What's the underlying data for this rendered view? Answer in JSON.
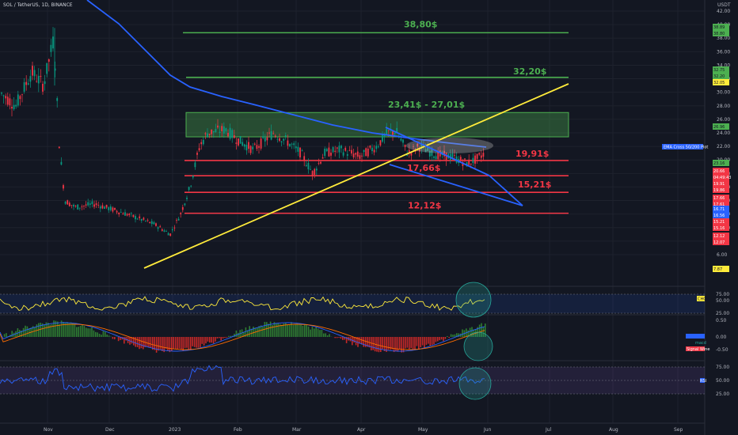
{
  "header": {
    "symbol": "SOL / TetherUS, 1D, BINANCE"
  },
  "axis": {
    "currency": "USDT",
    "price_ticks": [
      "42.00",
      "40.00",
      "38.00",
      "36.00",
      "34.00",
      "32.00",
      "30.00",
      "28.00",
      "26.00",
      "24.00",
      "22.00",
      "20.00",
      "18.00",
      "16.00",
      "14.00",
      "12.00",
      "10.00",
      "8.00",
      "6.00"
    ],
    "chop_ticks": [
      "75.00",
      "50.00",
      "25.00"
    ],
    "macd_ticks": [
      "0.50",
      "0.00",
      "-0.50"
    ],
    "rsi_ticks": [
      "75.00",
      "50.00",
      "25.00"
    ],
    "months": [
      "Nov",
      "Dec",
      "2023",
      "Feb",
      "Mar",
      "Apr",
      "May",
      "Jun",
      "Jul",
      "Aug",
      "Sep"
    ]
  },
  "price_badges": [
    {
      "text": "38.89",
      "color": "#4caf50"
    },
    {
      "text": "38.80",
      "color": "#4caf50"
    },
    {
      "text": "32.75",
      "color": "#4caf50"
    },
    {
      "text": "32.20",
      "color": "#4caf50"
    },
    {
      "text": "32.05",
      "color": "#ffeb3b"
    },
    {
      "text": "26.96",
      "color": "#4caf50"
    },
    {
      "text": "23.16",
      "color": "#4caf50"
    },
    {
      "text": "20.66",
      "color": "#f23645"
    },
    {
      "text": "04:49:43",
      "color": "#f23645"
    },
    {
      "text": "19.91",
      "color": "#f23645"
    },
    {
      "text": "19.86",
      "color": "#f23645"
    },
    {
      "text": "17.66",
      "color": "#f23645"
    },
    {
      "text": "17.61",
      "color": "#f23645"
    },
    {
      "text": "16.71",
      "color": "#2962ff"
    },
    {
      "text": "16.56",
      "color": "#2962ff"
    },
    {
      "text": "15.21",
      "color": "#f23645"
    },
    {
      "text": "15.16",
      "color": "#f23645"
    },
    {
      "text": "12.12",
      "color": "#f23645"
    },
    {
      "text": "12.07",
      "color": "#f23645"
    },
    {
      "text": "7.87",
      "color": "#ffeb3b"
    }
  ],
  "annotations": {
    "ema_label": "EMA Cross 50/200 Plot",
    "chop_label": "CHOP",
    "macd_labels": [
      "macd",
      "Signal Wine"
    ],
    "rsi_label": "RSI"
  },
  "chart_data": {
    "type": "line",
    "title": "SOL / TetherUS, 1D, BINANCE",
    "ylim": [
      6,
      42
    ],
    "x": [
      "Nov",
      "Dec",
      "2023",
      "Feb",
      "Mar",
      "Apr",
      "May",
      "Jun"
    ],
    "series": [
      {
        "name": "",
        "values": [
          31,
          14,
          10,
          24,
          21,
          20,
          21,
          20.66
        ]
      }
    ],
    "levels": [
      {
        "label": "38,80$",
        "value": 38.8,
        "color": "#4caf50"
      },
      {
        "label": "32,20$",
        "value": 32.2,
        "color": "#4caf50"
      },
      {
        "label": "23,41$ - 27,01$",
        "range": [
          23.41,
          27.01
        ],
        "color": "#4caf50"
      },
      {
        "label": "19,91$",
        "value": 19.91,
        "color": "#f23645"
      },
      {
        "label": "17,66$",
        "value": 17.66,
        "color": "#f23645"
      },
      {
        "label": "15,21$",
        "value": 15.21,
        "color": "#f23645"
      },
      {
        "label": "12,12$",
        "value": 12.12,
        "color": "#f23645"
      }
    ]
  }
}
